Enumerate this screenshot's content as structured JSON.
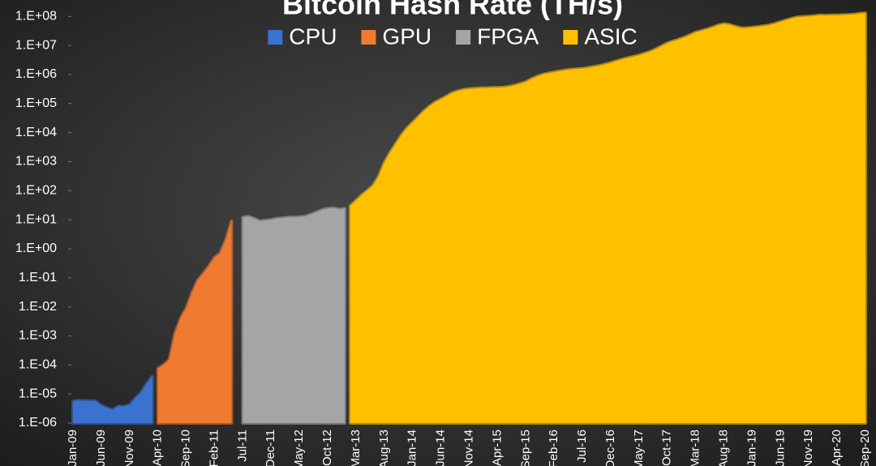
{
  "chart_data": {
    "type": "area",
    "title": "Bitcoin Hash Rate (TH/s)",
    "log": true,
    "grid": false,
    "legend": "top",
    "categories": [
      "Jan-09",
      null,
      null,
      null,
      null,
      "Jun-09",
      null,
      null,
      null,
      null,
      "Nov-09",
      null,
      null,
      null,
      null,
      "Apr-10",
      null,
      null,
      null,
      null,
      "Sep-10",
      null,
      null,
      null,
      null,
      "Feb-11",
      null,
      null,
      null,
      null,
      "Jul-11",
      null,
      null,
      null,
      null,
      "Dec-11",
      null,
      null,
      null,
      null,
      "May-12",
      null,
      null,
      null,
      null,
      "Oct-12",
      null,
      null,
      null,
      null,
      "Mar-13",
      null,
      null,
      null,
      null,
      "Aug-13",
      null,
      null,
      null,
      null,
      "Jan-14",
      null,
      null,
      null,
      null,
      "Jun-14",
      null,
      null,
      null,
      null,
      "Nov-14",
      null,
      null,
      null,
      null,
      "Apr-15",
      null,
      null,
      null,
      null,
      "Sep-15",
      null,
      null,
      null,
      null,
      "Feb-16",
      null,
      null,
      null,
      null,
      "Jul-16",
      null,
      null,
      null,
      null,
      "Dec-16",
      null,
      null,
      null,
      null,
      "May-17",
      null,
      null,
      null,
      null,
      "Oct-17",
      null,
      null,
      null,
      null,
      "Mar-18",
      null,
      null,
      null,
      null,
      "Aug-18",
      null,
      null,
      null,
      null,
      "Jan-19",
      null,
      null,
      null,
      null,
      "Jun-19",
      null,
      null,
      null,
      null,
      "Nov-19",
      null,
      null,
      null,
      null,
      "Apr-20",
      null,
      null,
      null,
      null,
      "Sep-20"
    ],
    "series": [
      {
        "name": "CPU",
        "color": "#3a72d0",
        "values": [
          5.5e-06,
          6e-06,
          5.8e-06,
          5.8e-06,
          5.7e-06,
          4e-06,
          3.3e-06,
          2.8e-06,
          3.8e-06,
          3.7e-06,
          4.2e-06,
          7e-06,
          1.1e-05,
          2.2e-05,
          4e-05,
          null,
          null,
          null,
          null,
          null,
          null,
          null,
          null,
          null,
          null,
          null,
          null,
          null,
          null,
          null,
          null,
          null,
          null,
          null,
          null,
          null,
          null,
          null,
          null,
          null,
          null,
          null,
          null,
          null,
          null,
          null,
          null,
          null,
          null,
          null,
          null,
          null,
          null,
          null,
          null,
          null,
          null,
          null,
          null,
          null,
          null,
          null,
          null,
          null,
          null,
          null,
          null,
          null,
          null,
          null,
          null,
          null,
          null,
          null,
          null,
          null,
          null,
          null,
          null,
          null,
          null,
          null,
          null,
          null,
          null,
          null,
          null,
          null,
          null,
          null,
          null,
          null,
          null,
          null,
          null,
          null,
          null,
          null,
          null,
          null,
          null,
          null,
          null,
          null,
          null,
          null,
          null,
          null,
          null,
          null,
          null,
          null,
          null,
          null,
          null,
          null,
          null,
          null,
          null,
          null,
          null,
          null,
          null,
          null,
          null,
          null,
          null,
          null,
          null,
          null,
          null,
          null,
          null,
          null,
          null,
          null,
          null,
          null,
          null,
          null,
          null
        ]
      },
      {
        "name": "GPU",
        "color": "#f07a30",
        "values": [
          null,
          null,
          null,
          null,
          null,
          null,
          null,
          null,
          null,
          null,
          null,
          null,
          null,
          null,
          null,
          7.5e-05,
          0.0001,
          0.00015,
          0.0012,
          0.004,
          0.009,
          0.03,
          0.08,
          0.14,
          0.25,
          0.5,
          0.7,
          2,
          9,
          null,
          null,
          null,
          null,
          null,
          null,
          null,
          null,
          null,
          null,
          null,
          null,
          null,
          null,
          null,
          null,
          null,
          null,
          null,
          null,
          null,
          null,
          null,
          null,
          null,
          null,
          null,
          null,
          null,
          null,
          null,
          null,
          null,
          null,
          null,
          null,
          null,
          null,
          null,
          null,
          null,
          null,
          null,
          null,
          null,
          null,
          null,
          null,
          null,
          null,
          null,
          null,
          null,
          null,
          null,
          null,
          null,
          null,
          null,
          null,
          null,
          null,
          null,
          null,
          null,
          null,
          null,
          null,
          null,
          null,
          null,
          null,
          null,
          null,
          null,
          null,
          null,
          null,
          null,
          null,
          null,
          null,
          null,
          null,
          null,
          null,
          null,
          null,
          null,
          null,
          null,
          null,
          null,
          null,
          null,
          null,
          null,
          null,
          null,
          null,
          null,
          null,
          null,
          null,
          null,
          null,
          null,
          null,
          null,
          null,
          null,
          null
        ]
      },
      {
        "name": "FPGA",
        "color": "#a5a5a5",
        "values": [
          null,
          null,
          null,
          null,
          null,
          null,
          null,
          null,
          null,
          null,
          null,
          null,
          null,
          null,
          null,
          null,
          null,
          null,
          null,
          null,
          null,
          null,
          null,
          null,
          null,
          null,
          null,
          null,
          null,
          null,
          12,
          13,
          11,
          9,
          9.5,
          10,
          11,
          11.5,
          12,
          12,
          12.5,
          13,
          15,
          18,
          22,
          24,
          25,
          23,
          24,
          null,
          null,
          null,
          null,
          null,
          null,
          null,
          null,
          null,
          null,
          null,
          null,
          null,
          null,
          null,
          null,
          null,
          null,
          null,
          null,
          null,
          null,
          null,
          null,
          null,
          null,
          null,
          null,
          null,
          null,
          null,
          null,
          null,
          null,
          null,
          null,
          null,
          null,
          null,
          null,
          null,
          null,
          null,
          null,
          null,
          null,
          null,
          null,
          null,
          null,
          null,
          null,
          null,
          null,
          null,
          null,
          null,
          null,
          null,
          null,
          null,
          null,
          null,
          null,
          null,
          null,
          null,
          null,
          null,
          null,
          null,
          null,
          null,
          null,
          null,
          null,
          null,
          null,
          null,
          null,
          null,
          null,
          null,
          null,
          null,
          null,
          null,
          null,
          null,
          null,
          null,
          null
        ]
      },
      {
        "name": "ASIC",
        "color": "#ffc000",
        "values": [
          null,
          null,
          null,
          null,
          null,
          null,
          null,
          null,
          null,
          null,
          null,
          null,
          null,
          null,
          null,
          null,
          null,
          null,
          null,
          null,
          null,
          null,
          null,
          null,
          null,
          null,
          null,
          null,
          null,
          null,
          null,
          null,
          null,
          null,
          null,
          null,
          null,
          null,
          null,
          null,
          null,
          null,
          null,
          null,
          null,
          null,
          null,
          null,
          null,
          30,
          45,
          70,
          100,
          150,
          300,
          900,
          2000,
          4000,
          8000,
          14000,
          22000,
          35000,
          55000,
          80000,
          110000,
          140000,
          180000,
          230000,
          270000,
          300000,
          320000,
          330000,
          340000,
          340000,
          350000,
          350000,
          360000,
          380000,
          420000,
          480000,
          550000,
          700000,
          850000,
          1000000,
          1100000,
          1200000,
          1300000,
          1400000,
          1500000,
          1550000,
          1600000,
          1700000,
          1850000,
          2000000,
          2250000,
          2500000,
          2900000,
          3300000,
          3700000,
          4100000,
          4600000,
          5300000,
          6200000,
          7500000,
          9500000,
          12000000,
          14000000,
          16000000,
          19000000,
          23000000,
          28000000,
          32000000,
          36000000,
          42000000,
          50000000,
          55000000,
          52000000,
          45000000,
          40000000,
          40000000,
          42000000,
          44000000,
          47000000,
          50000000,
          56000000,
          65000000,
          75000000,
          85000000,
          95000000,
          98000000,
          100000000,
          105000000,
          110000000,
          108000000,
          110000000,
          110000000,
          112000000,
          115000000,
          118000000,
          125000000,
          130000000
        ]
      }
    ],
    "ylim": [
      1e-06,
      150000000.0
    ],
    "yticks": [
      {
        "value": 1e-06,
        "label": "1.E-06"
      },
      {
        "value": 1e-05,
        "label": "1.E-05"
      },
      {
        "value": 0.0001,
        "label": "1.E-04"
      },
      {
        "value": 0.001,
        "label": "1.E-03"
      },
      {
        "value": 0.01,
        "label": "1.E-02"
      },
      {
        "value": 0.1,
        "label": "1.E-01"
      },
      {
        "value": 1,
        "label": "1.E+00"
      },
      {
        "value": 10,
        "label": "1.E+01"
      },
      {
        "value": 100,
        "label": "1.E+02"
      },
      {
        "value": 1000,
        "label": "1.E+03"
      },
      {
        "value": 10000,
        "label": "1.E+04"
      },
      {
        "value": 100000,
        "label": "1.E+05"
      },
      {
        "value": 1000000,
        "label": "1.E+06"
      },
      {
        "value": 10000000,
        "label": "1.E+07"
      },
      {
        "value": 100000000,
        "label": "1.E+08"
      }
    ]
  }
}
